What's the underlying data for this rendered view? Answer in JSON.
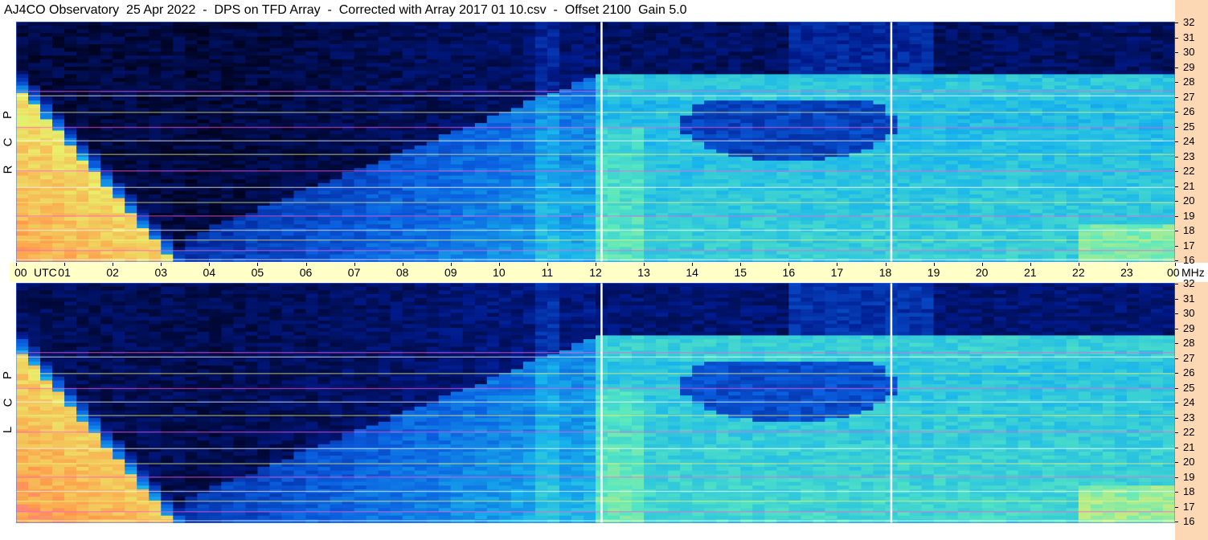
{
  "title": "AJ4CO Observatory  25 Apr 2022  -  DPS on TFD Array  -  Corrected with Array 2017 01 10.csv  -  Offset 2100  Gain 5.0",
  "panels": [
    {
      "label_letters": [
        "R",
        "C",
        "P"
      ]
    },
    {
      "label_letters": [
        "L",
        "C",
        "P"
      ]
    }
  ],
  "chart_data": {
    "type": "heatmap",
    "title": "AJ4CO Observatory  25 Apr 2022  -  DPS on TFD Array  -  Corrected with Array 2017 01 10.csv  -  Offset 2100  Gain 5.0",
    "x_axis": {
      "unit_label": "UTC",
      "range": [
        0,
        24
      ],
      "tick_labels": [
        "00",
        "01",
        "02",
        "03",
        "04",
        "05",
        "06",
        "07",
        "08",
        "09",
        "10",
        "11",
        "12",
        "13",
        "14",
        "15",
        "16",
        "17",
        "18",
        "19",
        "20",
        "21",
        "22",
        "23",
        "00"
      ]
    },
    "y_axis": {
      "unit_label": "MHz",
      "range": [
        16,
        32
      ],
      "tick_labels": [
        "16",
        "17",
        "18",
        "19",
        "20",
        "21",
        "22",
        "23",
        "24",
        "25",
        "26",
        "27",
        "28",
        "29",
        "30",
        "31",
        "32"
      ]
    },
    "series": [
      {
        "name": "RCP"
      },
      {
        "name": "LCP"
      }
    ],
    "colormap": [
      "#000010",
      "#001a8c",
      "#0a5fe0",
      "#18b4ec",
      "#58e8c0",
      "#e8f06a",
      "#ff9a4a",
      "#ff5ad8",
      "#ffffff"
    ]
  }
}
